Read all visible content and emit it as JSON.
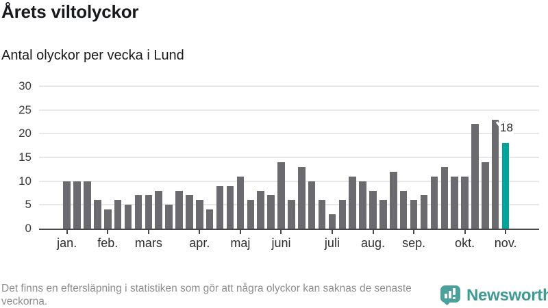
{
  "page": {
    "title": "Årets viltolyckor",
    "subtitle": "Antal olyckor per vecka i Lund"
  },
  "chart_data": {
    "type": "bar",
    "title": "Årets viltolyckor",
    "subtitle": "Antal olyckor per vecka i Lund",
    "xlabel": "",
    "ylabel": "",
    "ylim": [
      0,
      30
    ],
    "yticks": [
      0,
      5,
      10,
      15,
      20,
      25,
      30
    ],
    "grid": "horizontal",
    "legend": "none",
    "values": [
      10,
      10,
      10,
      6,
      4,
      6,
      5,
      7,
      7,
      8,
      5,
      8,
      7,
      6,
      4,
      9,
      9,
      11,
      6,
      8,
      7,
      14,
      6,
      13,
      10,
      6,
      3,
      6,
      11,
      10,
      8,
      6,
      12,
      8,
      6,
      7,
      11,
      13,
      11,
      11,
      22,
      14,
      23,
      18
    ],
    "month_ticks": {
      "labels": [
        "jan.",
        "feb.",
        "mars",
        "apr.",
        "maj",
        "juni",
        "juli",
        "aug.",
        "sep.",
        "okt.",
        "nov."
      ],
      "bar_indices": [
        0,
        4,
        8,
        13,
        17,
        21,
        26,
        30,
        34,
        39,
        43
      ]
    },
    "highlight_index": 43,
    "highlight_label": "18"
  },
  "colors": {
    "bar": "#6a6a6f",
    "highlight": "#00a49d",
    "grid": "#e7e7e7",
    "axis": "#47474c",
    "brand_teal": "#3d9a94",
    "logo_teal": "#4ba19b"
  },
  "footer": {
    "note": "Det finns en eftersläpning i statistiken som gör att några olyckor kan saknas de senaste veckorna.",
    "brand": "Newsworthy"
  }
}
